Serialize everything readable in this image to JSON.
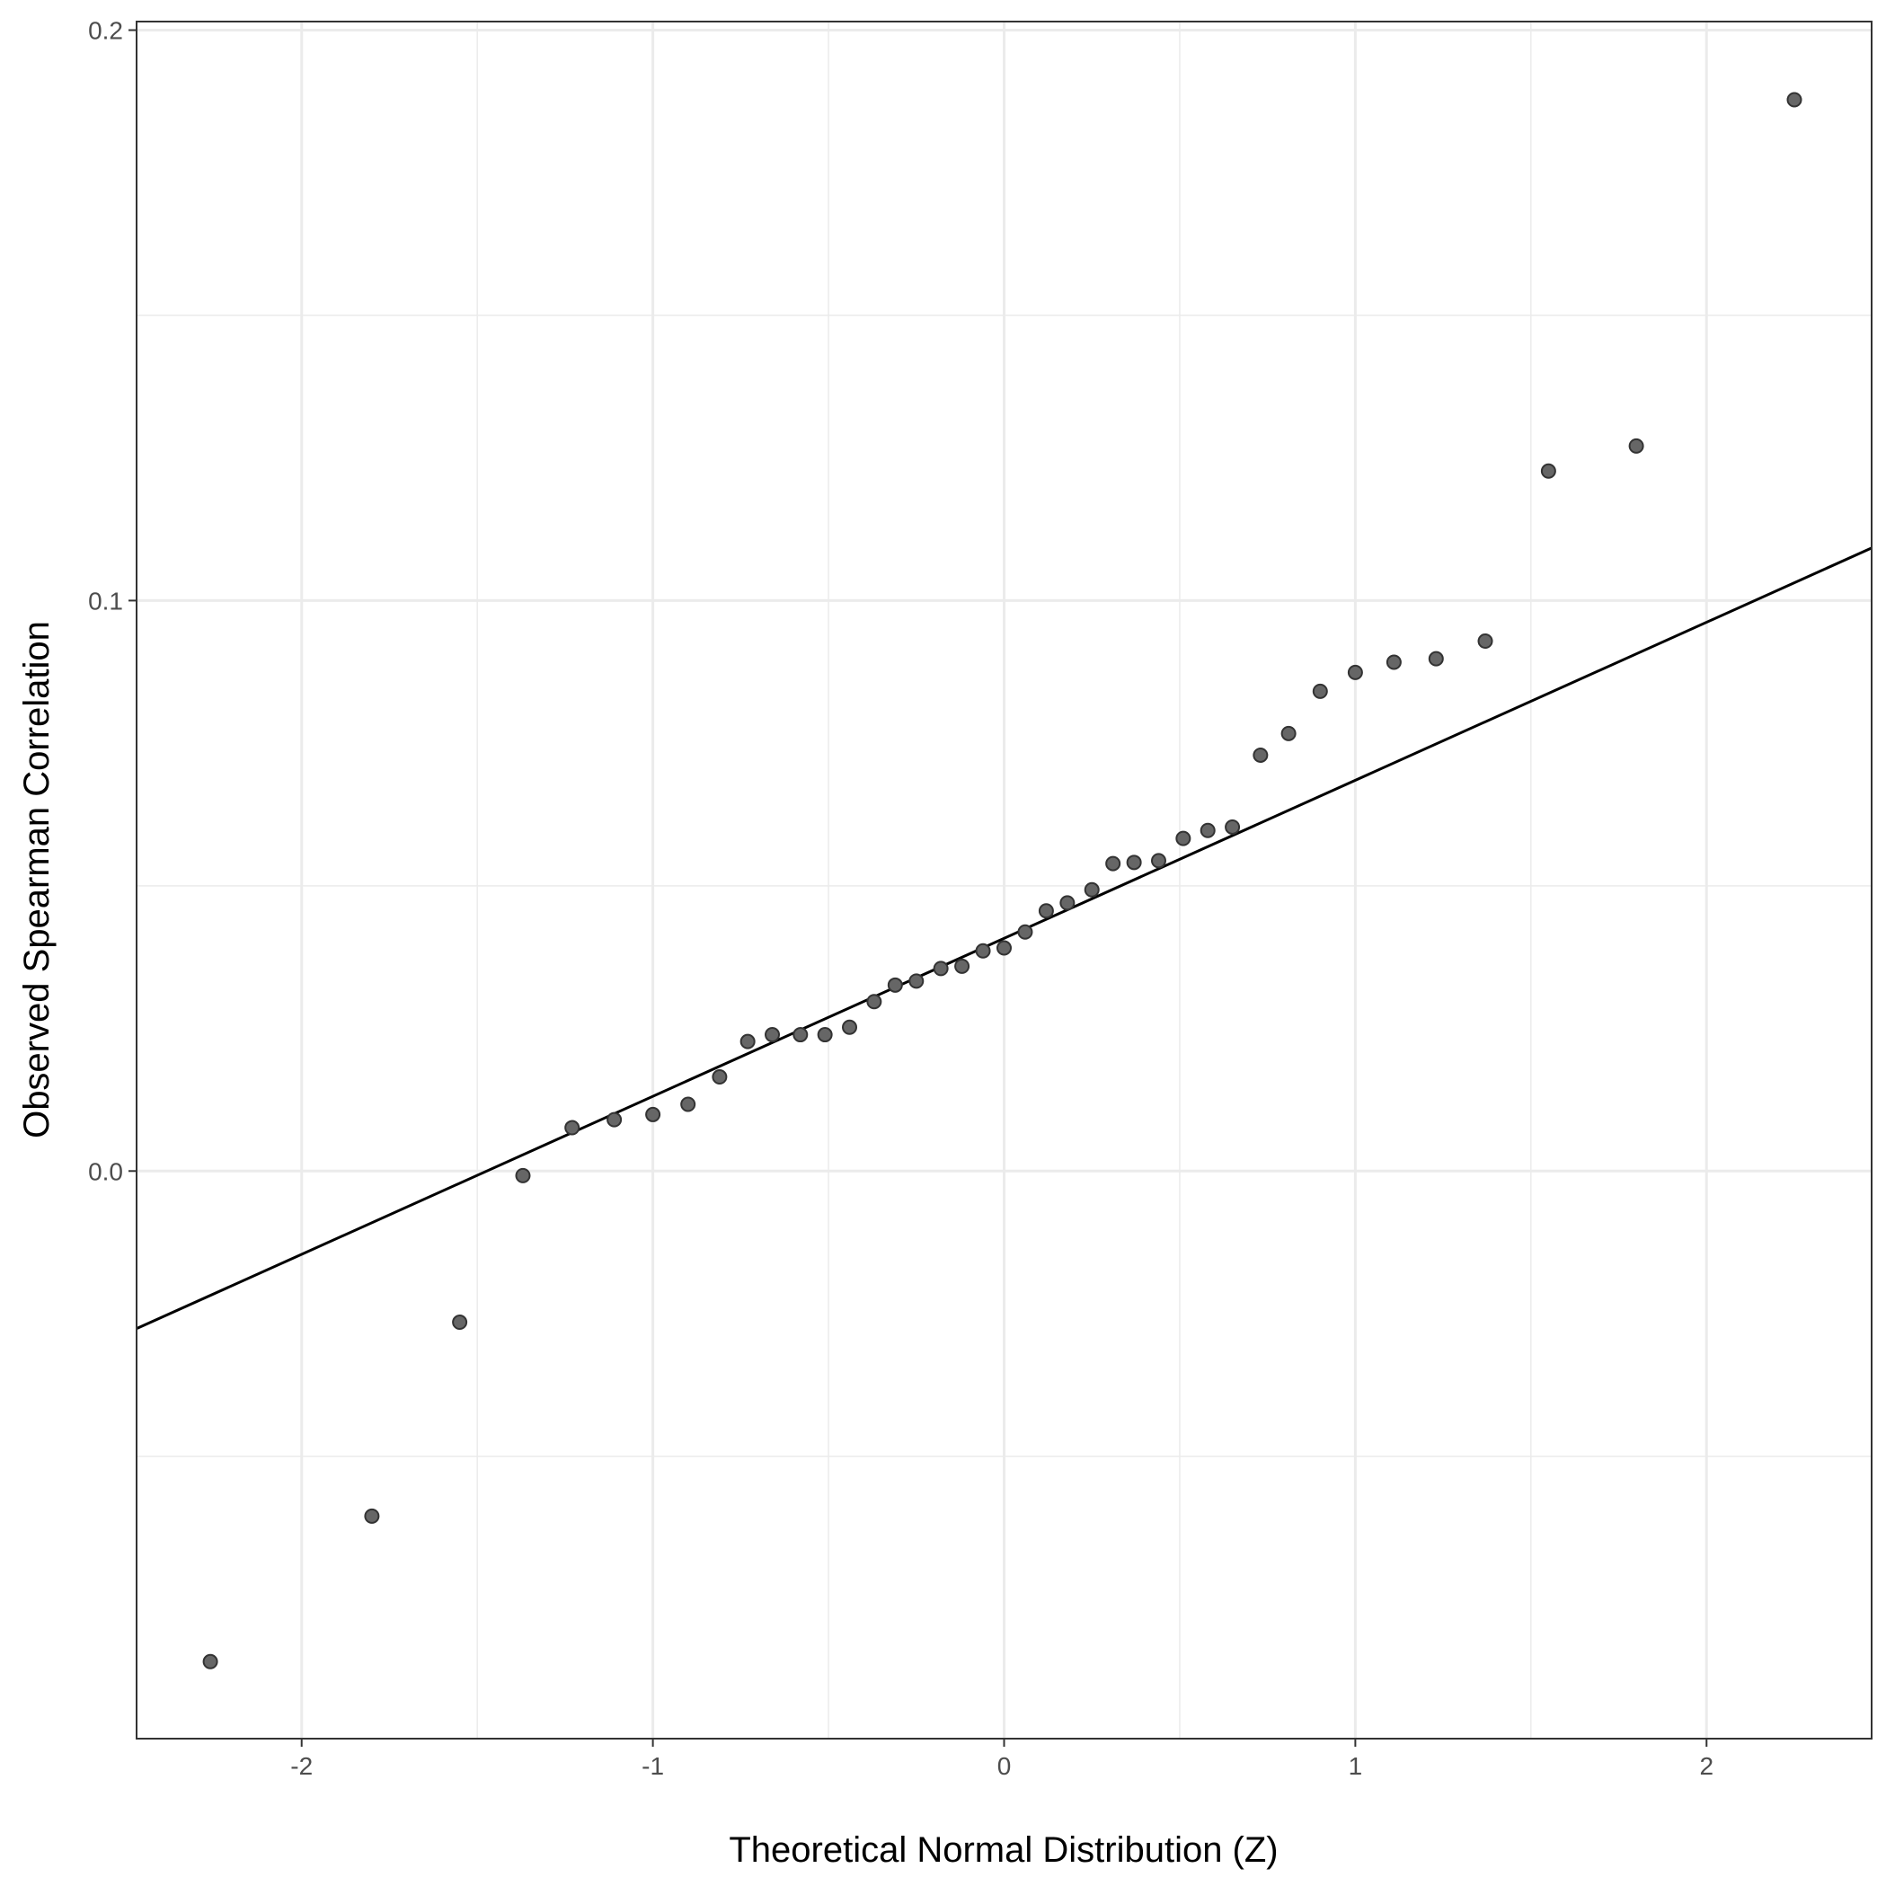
{
  "chart_data": {
    "type": "scatter",
    "title": "",
    "xlabel": "Theoretical Normal Distribution (Z)",
    "ylabel": "Observed Spearman Correlation",
    "xlim": [
      -2.47,
      2.47
    ],
    "ylim": [
      -0.0995,
      0.2015
    ],
    "x_ticks": [
      -2,
      -1,
      0,
      1,
      2
    ],
    "x_tick_labels": [
      "-2",
      "-1",
      "0",
      "1",
      "2"
    ],
    "y_ticks": [
      0.0,
      0.1,
      0.2
    ],
    "y_tick_labels": [
      "0.0",
      "0.1",
      "0.2"
    ],
    "grid": true,
    "legend": "none",
    "colors": {
      "point_fill": "#666666",
      "point_stroke": "#333333",
      "line": "#000000",
      "grid": "#ebebeb"
    },
    "series": [
      {
        "values": [
          {
            "x": -2.26,
            "y": -0.086
          },
          {
            "x": -1.8,
            "y": -0.0605
          },
          {
            "x": -1.55,
            "y": -0.0265
          },
          {
            "x": -1.37,
            "y": -0.0008
          },
          {
            "x": -1.23,
            "y": 0.0076
          },
          {
            "x": -1.11,
            "y": 0.009
          },
          {
            "x": -1.0,
            "y": 0.0099
          },
          {
            "x": -0.9,
            "y": 0.0117
          },
          {
            "x": -0.81,
            "y": 0.0165
          },
          {
            "x": -0.73,
            "y": 0.0227
          },
          {
            "x": -0.66,
            "y": 0.0239
          },
          {
            "x": -0.58,
            "y": 0.0239
          },
          {
            "x": -0.51,
            "y": 0.0239
          },
          {
            "x": -0.44,
            "y": 0.0252
          },
          {
            "x": -0.37,
            "y": 0.0297
          },
          {
            "x": -0.31,
            "y": 0.0326
          },
          {
            "x": -0.25,
            "y": 0.0333
          },
          {
            "x": -0.18,
            "y": 0.0355
          },
          {
            "x": -0.12,
            "y": 0.0359
          },
          {
            "x": -0.06,
            "y": 0.0386
          },
          {
            "x": 0.0,
            "y": 0.0391
          },
          {
            "x": 0.06,
            "y": 0.0419
          },
          {
            "x": 0.12,
            "y": 0.0456
          },
          {
            "x": 0.18,
            "y": 0.047
          },
          {
            "x": 0.25,
            "y": 0.0493
          },
          {
            "x": 0.31,
            "y": 0.0539
          },
          {
            "x": 0.37,
            "y": 0.0541
          },
          {
            "x": 0.44,
            "y": 0.0544
          },
          {
            "x": 0.51,
            "y": 0.0583
          },
          {
            "x": 0.58,
            "y": 0.0597
          },
          {
            "x": 0.65,
            "y": 0.0603
          },
          {
            "x": 0.73,
            "y": 0.0729
          },
          {
            "x": 0.81,
            "y": 0.0767
          },
          {
            "x": 0.9,
            "y": 0.0841
          },
          {
            "x": 1.0,
            "y": 0.0874
          },
          {
            "x": 1.11,
            "y": 0.0892
          },
          {
            "x": 1.23,
            "y": 0.0898
          },
          {
            "x": 1.37,
            "y": 0.0929
          },
          {
            "x": 1.55,
            "y": 0.1227
          },
          {
            "x": 1.8,
            "y": 0.1271
          },
          {
            "x": 2.25,
            "y": 0.1878
          }
        ]
      }
    ],
    "reference_line": {
      "intercept": 0.0408,
      "slope": 0.0277
    }
  }
}
